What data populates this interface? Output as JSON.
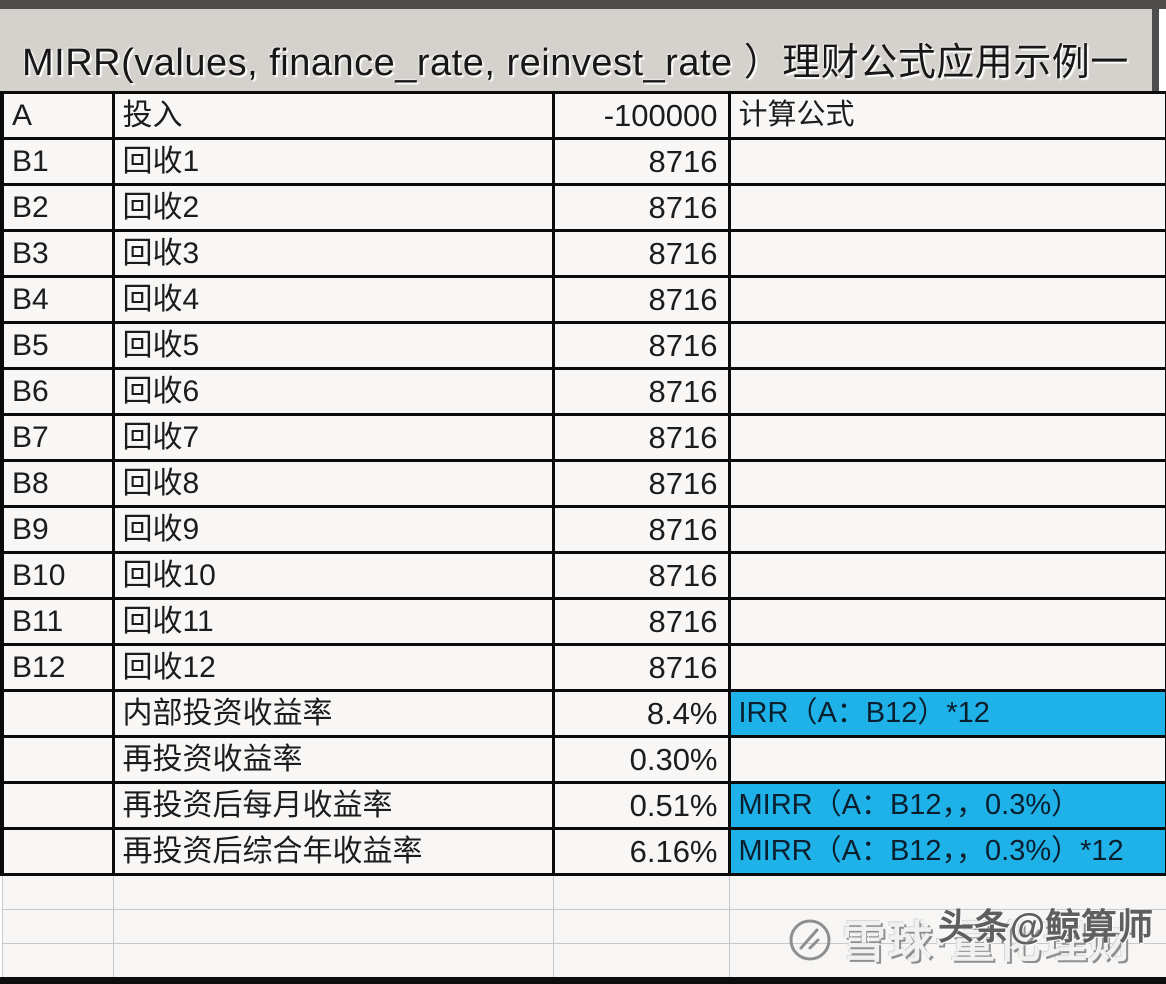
{
  "title": {
    "text": "MIRR(values, finance_rate, reinvest_rate ）理财公式应用示例一"
  },
  "table": {
    "columns": {
      "id_width": 111,
      "item_width": 440,
      "value_width": 176,
      "formula_width": 439
    },
    "rows": [
      {
        "id": "A",
        "item": "投入",
        "value": "-100000",
        "formula": "计算公式",
        "highlight": false
      },
      {
        "id": "B1",
        "item": "回收1",
        "value": "8716",
        "formula": "",
        "highlight": false
      },
      {
        "id": "B2",
        "item": "回收2",
        "value": "8716",
        "formula": "",
        "highlight": false
      },
      {
        "id": "B3",
        "item": "回收3",
        "value": "8716",
        "formula": "",
        "highlight": false
      },
      {
        "id": "B4",
        "item": "回收4",
        "value": "8716",
        "formula": "",
        "highlight": false
      },
      {
        "id": "B5",
        "item": "回收5",
        "value": "8716",
        "formula": "",
        "highlight": false
      },
      {
        "id": "B6",
        "item": "回收6",
        "value": "8716",
        "formula": "",
        "highlight": false
      },
      {
        "id": "B7",
        "item": "回收7",
        "value": "8716",
        "formula": "",
        "highlight": false
      },
      {
        "id": "B8",
        "item": "回收8",
        "value": "8716",
        "formula": "",
        "highlight": false
      },
      {
        "id": "B9",
        "item": "回收9",
        "value": "8716",
        "formula": "",
        "highlight": false
      },
      {
        "id": "B10",
        "item": "回收10",
        "value": "8716",
        "formula": "",
        "highlight": false
      },
      {
        "id": "B11",
        "item": "回收11",
        "value": "8716",
        "formula": "",
        "highlight": false
      },
      {
        "id": "B12",
        "item": "回收12",
        "value": "8716",
        "formula": "",
        "highlight": false
      },
      {
        "id": "",
        "item": "内部投资收益率",
        "value": "8.4%",
        "formula": "IRR（A：B12）*12",
        "highlight": true
      },
      {
        "id": "",
        "item": "再投资收益率",
        "value": "0.30%",
        "formula": "",
        "highlight": false
      },
      {
        "id": "",
        "item": "再投资后每月收益率",
        "value": "0.51%",
        "formula": "MIRR（A：B12，，0.3%）",
        "highlight": true
      },
      {
        "id": "",
        "item": "再投资后综合年收益率",
        "value": "6.16%",
        "formula": "MIRR（A：B12，，0.3%）*12",
        "highlight": true
      }
    ],
    "empty_row_count": 3
  },
  "watermark": {
    "logo": "xueqiu-logo",
    "light_text": "雪球·量化理财",
    "dark_text": "头条@鲸算师"
  },
  "colors": {
    "highlight_bg": "#1fb2e9",
    "highlight_text": "#0a1f2e",
    "title_bg": "#d5d2ce",
    "top_strip": "#4f4e4c",
    "grid_border": "#0b0b0b",
    "cell_bg": "#f8f7f6",
    "empty_border": "#c9c9c9"
  }
}
